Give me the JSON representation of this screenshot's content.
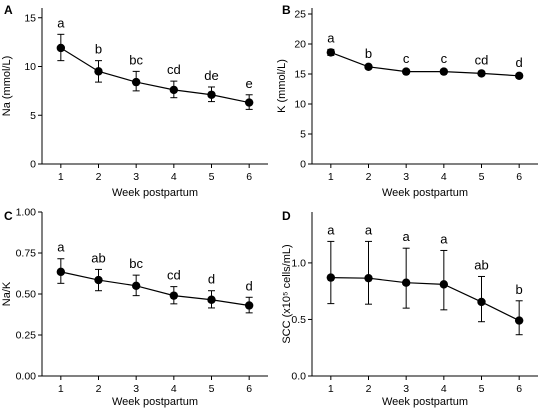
{
  "chart_data": [
    {
      "panel": "A",
      "type": "line",
      "xlabel": "Week postpartum",
      "ylabel": "Na (mmol/L)",
      "x": [
        1,
        2,
        3,
        4,
        5,
        6
      ],
      "series": [
        {
          "values": [
            11.9,
            9.5,
            8.4,
            7.6,
            7.1,
            6.3
          ],
          "err_low": [
            10.6,
            8.4,
            7.5,
            6.8,
            6.4,
            5.6
          ],
          "err_high": [
            13.3,
            10.6,
            9.5,
            8.5,
            7.9,
            7.1
          ],
          "letters": [
            "a",
            "b",
            "bc",
            "cd",
            "de",
            "e"
          ]
        }
      ],
      "xlim": [
        0.5,
        6.5
      ],
      "ylim": [
        0,
        16
      ],
      "yticks": [
        0,
        5,
        10,
        15
      ],
      "ytick_labels": [
        "0",
        "5",
        "10",
        "15"
      ],
      "grid": false
    },
    {
      "panel": "B",
      "type": "line",
      "xlabel": "Week postpartum",
      "ylabel": "K (mmol/L)",
      "x": [
        1,
        2,
        3,
        4,
        5,
        6
      ],
      "series": [
        {
          "values": [
            18.6,
            16.2,
            15.4,
            15.4,
            15.1,
            14.7
          ],
          "err_low": [
            18.1,
            15.9,
            15.1,
            15.1,
            14.8,
            14.4
          ],
          "err_high": [
            19.1,
            16.5,
            15.7,
            15.7,
            15.4,
            15.0
          ],
          "letters": [
            "a",
            "b",
            "c",
            "c",
            "cd",
            "d"
          ]
        }
      ],
      "xlim": [
        0.5,
        6.5
      ],
      "ylim": [
        0,
        26
      ],
      "yticks": [
        0,
        5,
        10,
        15,
        20,
        25
      ],
      "ytick_labels": [
        "0",
        "5",
        "10",
        "15",
        "20",
        "25"
      ],
      "grid": false
    },
    {
      "panel": "C",
      "type": "line",
      "xlabel": "Week postpartum",
      "ylabel": "Na/K",
      "x": [
        1,
        2,
        3,
        4,
        5,
        6
      ],
      "series": [
        {
          "values": [
            0.635,
            0.585,
            0.55,
            0.49,
            0.465,
            0.43
          ],
          "err_low": [
            0.565,
            0.52,
            0.49,
            0.44,
            0.415,
            0.385
          ],
          "err_high": [
            0.715,
            0.65,
            0.615,
            0.545,
            0.52,
            0.48
          ],
          "letters": [
            "a",
            "ab",
            "bc",
            "cd",
            "d",
            "d"
          ]
        }
      ],
      "xlim": [
        0.5,
        6.5
      ],
      "ylim": [
        0,
        1
      ],
      "yticks": [
        0,
        0.25,
        0.5,
        0.75,
        1
      ],
      "ytick_labels": [
        "0.00",
        "0.25",
        "0.50",
        "0.75",
        "1.00"
      ],
      "grid": false
    },
    {
      "panel": "D",
      "type": "line",
      "xlabel": "Week postpartum",
      "ylabel": "SCC (x10⁵ cells/mL)",
      "x": [
        1,
        2,
        3,
        4,
        5,
        6
      ],
      "series": [
        {
          "values": [
            0.87,
            0.865,
            0.825,
            0.81,
            0.655,
            0.49
          ],
          "err_low": [
            0.64,
            0.635,
            0.6,
            0.585,
            0.48,
            0.365
          ],
          "err_high": [
            1.19,
            1.19,
            1.13,
            1.11,
            0.88,
            0.665
          ],
          "letters": [
            "a",
            "a",
            "a",
            "a",
            "ab",
            "b"
          ]
        }
      ],
      "xlim": [
        0.5,
        6.5
      ],
      "ylim": [
        0,
        1.45
      ],
      "yticks": [
        0,
        0.5,
        1
      ],
      "ytick_labels": [
        "0.0",
        "0.5",
        "1.0"
      ],
      "grid": false
    }
  ]
}
